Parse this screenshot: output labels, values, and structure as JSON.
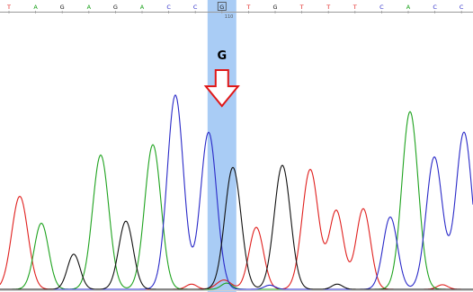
{
  "sequence": [
    {
      "base": "T",
      "called": false
    },
    {
      "base": "A",
      "called": false
    },
    {
      "base": "G",
      "called": false
    },
    {
      "base": "A",
      "called": false
    },
    {
      "base": "G",
      "called": false
    },
    {
      "base": "A",
      "called": false
    },
    {
      "base": "C",
      "called": false
    },
    {
      "base": "C",
      "called": false
    },
    {
      "base": "G",
      "called": true
    },
    {
      "base": "T",
      "called": false
    },
    {
      "base": "G",
      "called": false
    },
    {
      "base": "T",
      "called": false
    },
    {
      "base": "T",
      "called": false
    },
    {
      "base": "T",
      "called": false
    },
    {
      "base": "C",
      "called": false
    },
    {
      "base": "A",
      "called": false
    },
    {
      "base": "C",
      "called": false
    },
    {
      "base": "C",
      "called": false
    }
  ],
  "position_label": "110",
  "highlight": {
    "base": "G",
    "color": "#a9ccf5"
  },
  "arrow": {
    "color": "#e01818"
  },
  "base_colors": {
    "A": "#1fa31f",
    "C": "#2a2ac8",
    "G": "#111111",
    "T": "#e0201e"
  },
  "chart_data": {
    "type": "line",
    "x_unit": "trace_index",
    "y_unit": "signal_intensity",
    "ylim": [
      0,
      1
    ],
    "series": [
      {
        "name": "T",
        "color": "#e0201e",
        "peaks": [
          {
            "x": 22,
            "height": 0.45,
            "width": 9
          },
          {
            "x": 213,
            "height": 0.025,
            "width": 6
          },
          {
            "x": 249,
            "height": 0.045,
            "width": 8
          },
          {
            "x": 285,
            "height": 0.3,
            "width": 8
          },
          {
            "x": 345,
            "height": 0.58,
            "width": 9
          },
          {
            "x": 374,
            "height": 0.38,
            "width": 8
          },
          {
            "x": 404,
            "height": 0.39,
            "width": 8
          },
          {
            "x": 492,
            "height": 0.022,
            "width": 6
          }
        ]
      },
      {
        "name": "A",
        "color": "#1fa31f",
        "peaks": [
          {
            "x": 46,
            "height": 0.32,
            "width": 8
          },
          {
            "x": 112,
            "height": 0.65,
            "width": 9
          },
          {
            "x": 170,
            "height": 0.7,
            "width": 9
          },
          {
            "x": 252,
            "height": 0.03,
            "width": 6
          },
          {
            "x": 456,
            "height": 0.86,
            "width": 9
          }
        ]
      },
      {
        "name": "C",
        "color": "#2a2ac8",
        "peaks": [
          {
            "x": 195,
            "height": 0.94,
            "width": 9
          },
          {
            "x": 232,
            "height": 0.76,
            "width": 9
          },
          {
            "x": 300,
            "height": 0.02,
            "width": 6
          },
          {
            "x": 434,
            "height": 0.35,
            "width": 8
          },
          {
            "x": 483,
            "height": 0.64,
            "width": 9
          },
          {
            "x": 516,
            "height": 0.76,
            "width": 9
          }
        ]
      },
      {
        "name": "G",
        "color": "#111111",
        "peaks": [
          {
            "x": 82,
            "height": 0.17,
            "width": 7
          },
          {
            "x": 140,
            "height": 0.33,
            "width": 8
          },
          {
            "x": 259,
            "height": 0.59,
            "width": 9
          },
          {
            "x": 314,
            "height": 0.6,
            "width": 9
          },
          {
            "x": 375,
            "height": 0.025,
            "width": 6
          }
        ]
      }
    ]
  }
}
